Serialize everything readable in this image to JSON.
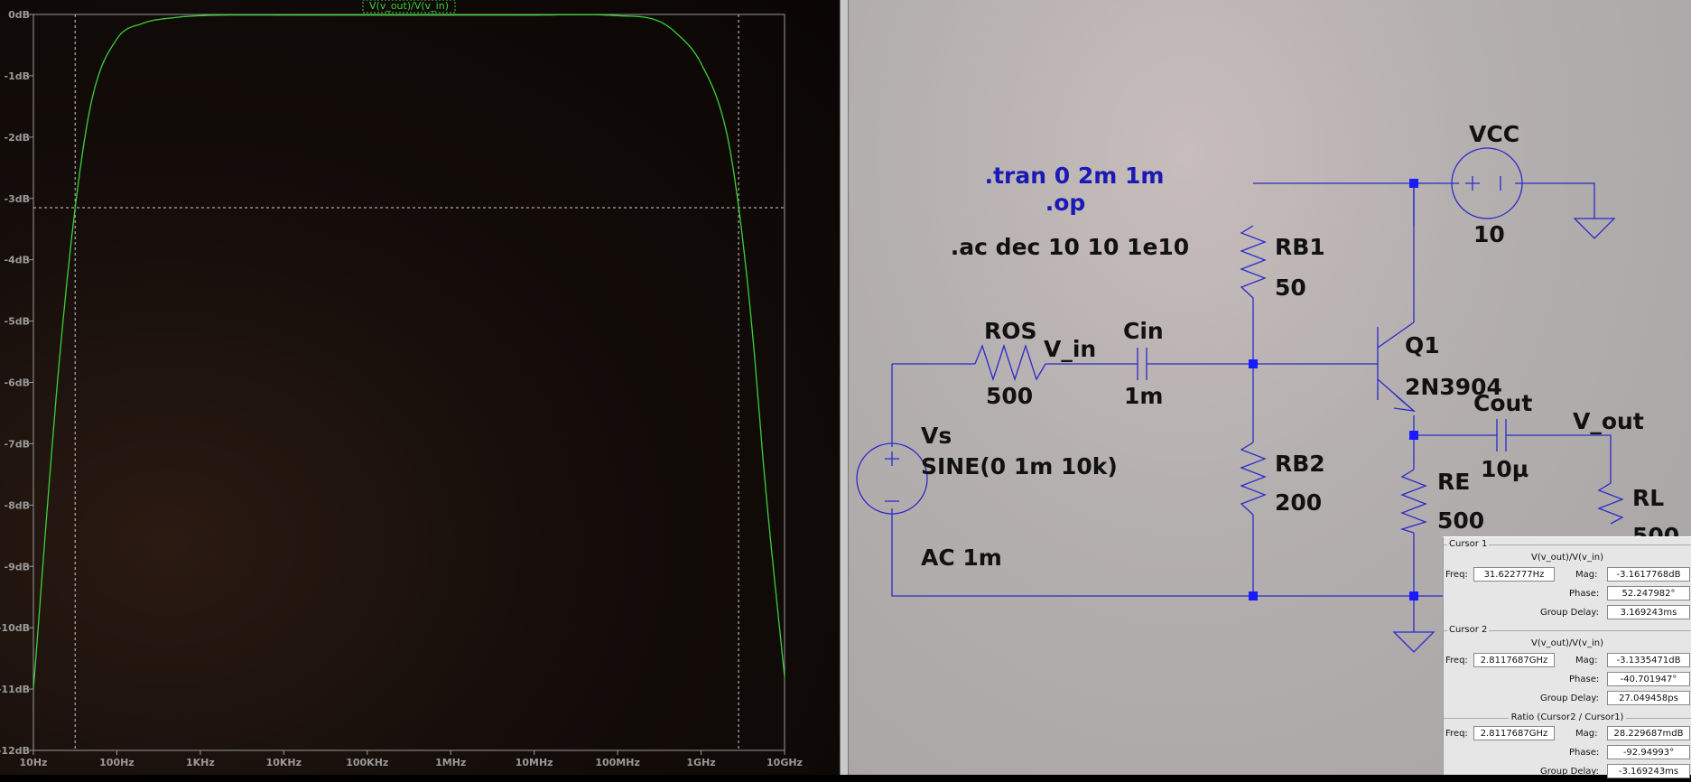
{
  "plot": {
    "trace_title": "V(v_out)/V(v_in)",
    "y_ticks": [
      "0dB",
      "-1dB",
      "-2dB",
      "-3dB",
      "-4dB",
      "-5dB",
      "-6dB",
      "-7dB",
      "-8dB",
      "-9dB",
      "-10dB",
      "-11dB",
      "-12dB"
    ],
    "x_ticks": [
      "10Hz",
      "100Hz",
      "1KHz",
      "10KHz",
      "100KHz",
      "1MHz",
      "10MHz",
      "100MHz",
      "1GHz",
      "10GHz"
    ],
    "colors": {
      "trace": "#3bd13b",
      "axis": "#9a9a9a",
      "grid": "#cfcfcf",
      "title": "#3bd13b"
    }
  },
  "chart_data": {
    "type": "line",
    "title": "V(v_out)/V(v_in)",
    "x_scale": "log",
    "x": [
      "10Hz",
      "20Hz",
      "31.6Hz",
      "50Hz",
      "100Hz",
      "200Hz",
      "500Hz",
      "1KHz",
      "10KHz",
      "100KHz",
      "1MHz",
      "10MHz",
      "100MHz",
      "300MHz",
      "500MHz",
      "1GHz",
      "2GHz",
      "2.81GHz",
      "4GHz",
      "6GHz",
      "10GHz"
    ],
    "x_values": [
      10,
      20,
      31.62,
      50,
      100,
      200,
      500,
      1000,
      10000,
      100000,
      1000000,
      10000000,
      100000000,
      300000000,
      500000000,
      1000000000,
      2000000000,
      2811768700,
      4000000000,
      6000000000,
      10000000000
    ],
    "series": [
      {
        "name": "V(v_out)/V(v_in)",
        "values": [
          -11.0,
          -5.8,
          -3.16,
          -1.4,
          -0.4,
          -0.15,
          -0.05,
          -0.02,
          -0.01,
          -0.01,
          -0.01,
          -0.01,
          -0.02,
          -0.1,
          -0.3,
          -0.8,
          -1.9,
          -3.13,
          -5.0,
          -7.8,
          -10.8
        ]
      }
    ],
    "ylim": [
      -12,
      0
    ],
    "xlim_hz": [
      10,
      10000000000
    ],
    "cursors": [
      31.62,
      2811768700
    ],
    "cursor_level_db": -3.15,
    "grid": false
  },
  "schematic": {
    "directives": [
      ".tran 0 2m 1m",
      ".op",
      ".ac dec 10 10 1e10"
    ],
    "components": {
      "vcc": {
        "name": "VCC",
        "value": "10"
      },
      "rb1": {
        "name": "RB1",
        "value": "50"
      },
      "rb2": {
        "name": "RB2",
        "value": "200"
      },
      "ros": {
        "name": "ROS",
        "value": "500"
      },
      "cin": {
        "name": "Cin",
        "value": "1m"
      },
      "q1": {
        "name": "Q1",
        "value": "2N3904"
      },
      "cout": {
        "name": "Cout",
        "value": "10µ"
      },
      "re": {
        "name": "RE",
        "value": "500"
      },
      "rl": {
        "name": "RL",
        "value": "500"
      },
      "vs": {
        "name": "Vs",
        "value": "SINE(0 1m 10k)",
        "ac": "AC 1m"
      }
    },
    "net_labels": {
      "v_in": "V_in",
      "v_out": "V_out"
    },
    "colors": {
      "wire": "#2a2ac8",
      "junction": "#1a1aff",
      "text": "#111111",
      "directive": "#1a1ab4"
    }
  },
  "cursor_panel": {
    "cursor1": {
      "title": "Cursor 1",
      "trace": "V(v_out)/V(v_in)",
      "freq": "31.622777Hz",
      "mag": "-3.1617768dB",
      "phase": "52.247982°",
      "group_delay": "3.169243ms"
    },
    "cursor2": {
      "title": "Cursor 2",
      "trace": "V(v_out)/V(v_in)",
      "freq": "2.8117687GHz",
      "mag": "-3.1335471dB",
      "phase": "-40.701947°",
      "group_delay": "27.049458ps"
    },
    "ratio": {
      "title": "Ratio (Cursor2 / Cursor1)",
      "freq": "2.8117687GHz",
      "mag": "28.229687mdB",
      "phase": "-92.94993°",
      "group_delay": "-3.169243ms"
    },
    "labels": {
      "freq": "Freq:",
      "mag": "Mag:",
      "phase": "Phase:",
      "group_delay": "Group Delay:"
    }
  }
}
